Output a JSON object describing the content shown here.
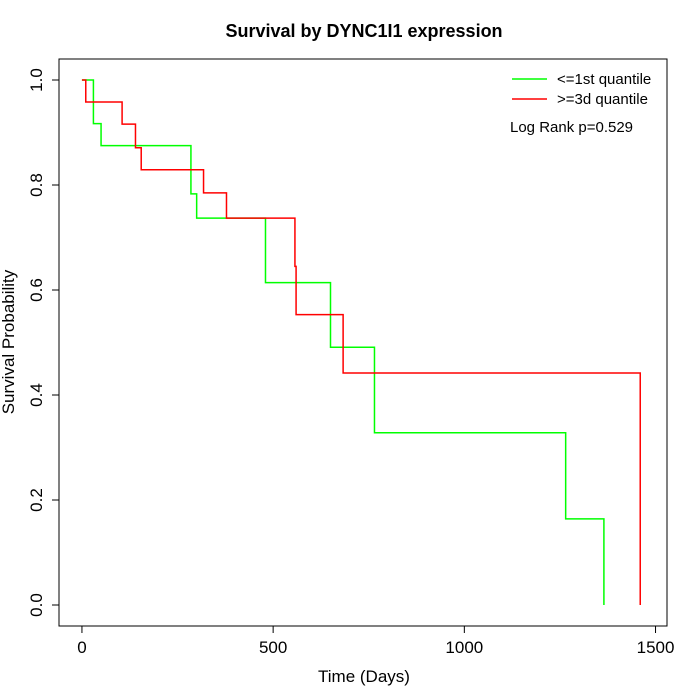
{
  "chart_data": {
    "type": "line",
    "title": "Survival by DYNC1I1 expression",
    "xlabel": "Time (Days)",
    "ylabel": "Survival Probability",
    "xlim": [
      -60,
      1530
    ],
    "ylim": [
      -0.04,
      1.04
    ],
    "xticks": [
      0,
      500,
      1000,
      1500
    ],
    "xtick_labels": [
      "0",
      "500",
      "1000",
      "1500"
    ],
    "yticks": [
      0.0,
      0.2,
      0.4,
      0.6,
      0.8,
      1.0
    ],
    "ytick_labels": [
      "0.0",
      "0.2",
      "0.4",
      "0.6",
      "0.8",
      "1.0"
    ],
    "grid": false,
    "legend_position": "top-right",
    "annotation": "Log Rank p=0.529",
    "series": [
      {
        "name": "<=1st quantile",
        "color": "#00ff00",
        "step_times": [
          0,
          20,
          30,
          50,
          280,
          285,
          300,
          480,
          650,
          765,
          1265,
          1365
        ],
        "survival": [
          1.0,
          1.0,
          0.917,
          0.875,
          0.875,
          0.783,
          0.737,
          0.614,
          0.491,
          0.328,
          0.164,
          0.0
        ]
      },
      {
        "name": ">=3d quantile",
        "color": "#ff0000",
        "step_times": [
          0,
          10,
          105,
          140,
          155,
          318,
          378,
          555,
          557,
          560,
          683,
          1460
        ],
        "survival": [
          1.0,
          0.958,
          0.916,
          0.871,
          0.829,
          0.785,
          0.737,
          0.737,
          0.645,
          0.553,
          0.442,
          0.0
        ]
      }
    ]
  }
}
